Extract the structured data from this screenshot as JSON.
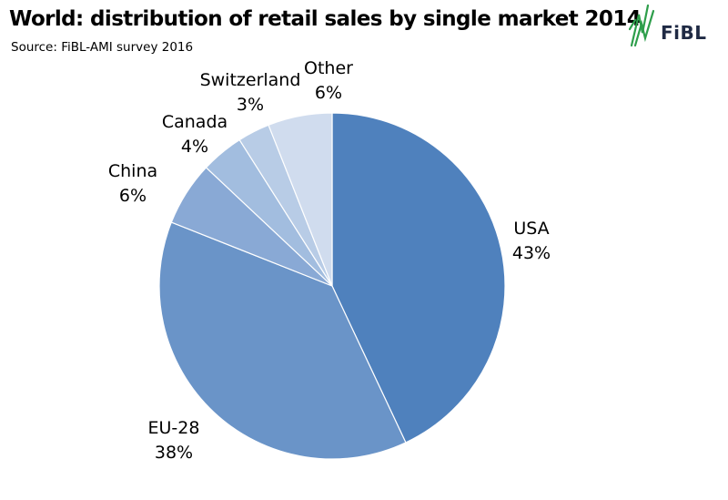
{
  "title": "World: distribution of retail sales by single market 2014",
  "subtitle": "Source: FiBL-AMI survey 2016",
  "logo": {
    "text": "FiBL",
    "icon": "fibl-leaf-logo",
    "color": "#2e9e4b"
  },
  "chart_data": {
    "type": "pie",
    "title": "World: distribution of retail sales by single market 2014",
    "subtitle": "Source: FiBL-AMI survey 2016",
    "start": "12 o'clock",
    "direction": "clockwise",
    "slices": [
      {
        "label": "USA",
        "value": 43,
        "value_label": "43%",
        "color": "#4f81bd"
      },
      {
        "label": "EU-28",
        "value": 38,
        "value_label": "38%",
        "color": "#6a94c8"
      },
      {
        "label": "China",
        "value": 6,
        "value_label": "6%",
        "color": "#89a9d5"
      },
      {
        "label": "Canada",
        "value": 4,
        "value_label": "4%",
        "color": "#a2bddf"
      },
      {
        "label": "Switzerland",
        "value": 3,
        "value_label": "3%",
        "color": "#b8cce6"
      },
      {
        "label": "Other",
        "value": 6,
        "value_label": "6%",
        "color": "#d0dcee"
      }
    ]
  }
}
